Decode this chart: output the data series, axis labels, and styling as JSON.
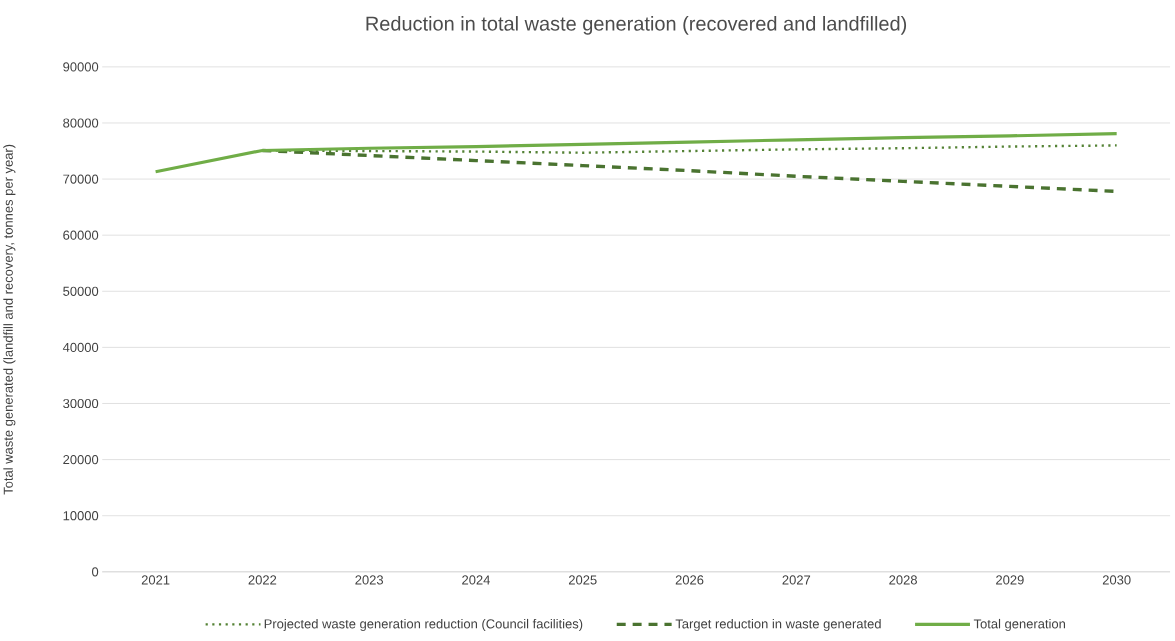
{
  "chart_data": {
    "type": "line",
    "title": "Reduction in total waste generation (recovered and landfilled)",
    "ylabel": "Total waste generated (landfill and recovery, tonnes per year)",
    "categories": [
      "2021",
      "2022",
      "2023",
      "2024",
      "2025",
      "2026",
      "2027",
      "2028",
      "2029",
      "2030"
    ],
    "series": [
      {
        "name": "Projected waste generation reduction (Council facilities)",
        "color": "#548235",
        "line_style": "dotted",
        "values": [
          null,
          75100,
          75000,
          74900,
          74700,
          75000,
          75300,
          75500,
          75800,
          76000
        ]
      },
      {
        "name": "Target reduction in waste generated",
        "color": "#4a7330",
        "line_style": "dashed",
        "values": [
          null,
          75100,
          74200,
          73300,
          72400,
          71500,
          70500,
          69600,
          68700,
          67800
        ]
      },
      {
        "name": "Total generation",
        "color": "#70ad47",
        "line_style": "solid",
        "values": [
          71300,
          75100,
          75500,
          75800,
          76200,
          76600,
          77000,
          77400,
          77700,
          78100
        ]
      }
    ],
    "ylim": [
      0,
      90000
    ],
    "yticks": [
      0,
      10000,
      20000,
      30000,
      40000,
      50000,
      60000,
      70000,
      80000,
      90000
    ],
    "grid": "y",
    "legend": "bottom",
    "marker": "none"
  }
}
